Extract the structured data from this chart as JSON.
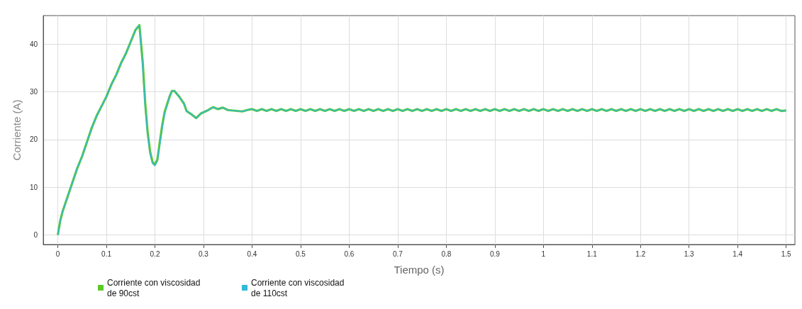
{
  "chart_data": {
    "type": "line",
    "xlabel": "Tiempo (s)",
    "ylabel": "Corriente (A)",
    "xlim": [
      -0.03,
      1.518
    ],
    "ylim": [
      -2,
      46
    ],
    "xticks": [
      0,
      0.1,
      0.2,
      0.3,
      0.4,
      0.5,
      0.6,
      0.7,
      0.8,
      0.9,
      1,
      1.1,
      1.2,
      1.3,
      1.4,
      1.5
    ],
    "yticks": [
      0,
      10,
      20,
      30,
      40
    ],
    "grid": true,
    "legend": "bottom left",
    "marker": "none",
    "line_style": "solid",
    "x": [
      0,
      0.005,
      0.01,
      0.02,
      0.03,
      0.04,
      0.05,
      0.06,
      0.07,
      0.08,
      0.09,
      0.1,
      0.11,
      0.12,
      0.13,
      0.14,
      0.15,
      0.16,
      0.168,
      0.175,
      0.18,
      0.185,
      0.19,
      0.195,
      0.2,
      0.205,
      0.21,
      0.215,
      0.22,
      0.23,
      0.235,
      0.24,
      0.25,
      0.26,
      0.265,
      0.275,
      0.285,
      0.295,
      0.31,
      0.32,
      0.33,
      0.34,
      0.35,
      0.38,
      0.39,
      0.4,
      0.41,
      0.42,
      0.43,
      0.44,
      0.45,
      0.46,
      0.47,
      0.48,
      0.49,
      0.5,
      0.51,
      0.52,
      0.53,
      0.54,
      0.55,
      0.56,
      0.57,
      0.58,
      0.59,
      0.6,
      0.61,
      0.62,
      0.63,
      0.64,
      0.65,
      0.66,
      0.67,
      0.68,
      0.69,
      0.7,
      0.71,
      0.72,
      0.73,
      0.74,
      0.75,
      0.76,
      0.77,
      0.78,
      0.79,
      0.8,
      0.81,
      0.82,
      0.83,
      0.84,
      0.85,
      0.86,
      0.87,
      0.88,
      0.89,
      0.9,
      0.91,
      0.92,
      0.93,
      0.94,
      0.95,
      0.96,
      0.97,
      0.98,
      0.99,
      1,
      1.01,
      1.02,
      1.03,
      1.04,
      1.05,
      1.06,
      1.07,
      1.08,
      1.09,
      1.1,
      1.11,
      1.12,
      1.13,
      1.14,
      1.15,
      1.16,
      1.17,
      1.18,
      1.19,
      1.2,
      1.21,
      1.22,
      1.23,
      1.24,
      1.25,
      1.26,
      1.27,
      1.28,
      1.29,
      1.3,
      1.31,
      1.32,
      1.33,
      1.34,
      1.35,
      1.36,
      1.37,
      1.38,
      1.39,
      1.4,
      1.41,
      1.42,
      1.43,
      1.44,
      1.45,
      1.46,
      1.47,
      1.48,
      1.49,
      1.5
    ],
    "series": [
      {
        "name": "Corriente con viscosidad de 90cst",
        "color": "#5cc928",
        "values": [
          0,
          3,
          5,
          8,
          11,
          14,
          16.5,
          19.5,
          22.5,
          25,
          27,
          29,
          31.5,
          33.5,
          36,
          38,
          40.5,
          43,
          44,
          36,
          27.5,
          21.5,
          17.5,
          15.3,
          14.8,
          15.8,
          19.5,
          23,
          25.8,
          29,
          30.2,
          30.2,
          29,
          27.5,
          26,
          25.3,
          24.5,
          25.5,
          26.2,
          26.8,
          26.4,
          26.7,
          26.2,
          25.9,
          26.2,
          26.4,
          26.0,
          26.4,
          26.0,
          26.4,
          26.0,
          26.4,
          26.0,
          26.4,
          26.0,
          26.4,
          26.0,
          26.4,
          26.0,
          26.4,
          26.0,
          26.4,
          26.0,
          26.4,
          26.0,
          26.4,
          26.0,
          26.4,
          26.0,
          26.4,
          26.0,
          26.4,
          26.0,
          26.4,
          26.0,
          26.4,
          26.0,
          26.4,
          26.0,
          26.4,
          26.0,
          26.4,
          26.0,
          26.4,
          26.0,
          26.4,
          26.0,
          26.4,
          26.0,
          26.4,
          26.0,
          26.4,
          26.0,
          26.4,
          26.0,
          26.4,
          26.0,
          26.4,
          26.0,
          26.4,
          26.0,
          26.4,
          26.0,
          26.4,
          26.0,
          26.4,
          26.0,
          26.4,
          26.0,
          26.4,
          26.0,
          26.4,
          26.0,
          26.4,
          26.0,
          26.4,
          26.0,
          26.4,
          26.0,
          26.4,
          26.0,
          26.4,
          26.0,
          26.4,
          26.0,
          26.4,
          26.0,
          26.4,
          26.0,
          26.4,
          26.0,
          26.4,
          26.0,
          26.4,
          26.0,
          26.4,
          26.0,
          26.4,
          26.0,
          26.4,
          26.0,
          26.4,
          26.0,
          26.4,
          26.0,
          26.4,
          26.0,
          26.4,
          26.0,
          26.4,
          26.0,
          26.4,
          26.0,
          26.4,
          26.0,
          26.1
        ]
      },
      {
        "name": "Corriente con viscosidad de 110cst",
        "color": "#34b8d8",
        "values": [
          0,
          3,
          5,
          8,
          11,
          14,
          16.5,
          19.5,
          22.5,
          25,
          27,
          29,
          31.5,
          33.5,
          36,
          38,
          40.5,
          43,
          44,
          35,
          27,
          21,
          17,
          15,
          14.5,
          15.5,
          19,
          22.5,
          25.5,
          29,
          30.2,
          30.2,
          29,
          27.5,
          26,
          25.3,
          24.5,
          25.5,
          26.2,
          26.8,
          26.4,
          26.7,
          26.2,
          25.9,
          26.2,
          26.4,
          26.0,
          26.4,
          26.0,
          26.4,
          26.0,
          26.4,
          26.0,
          26.4,
          26.0,
          26.4,
          26.0,
          26.4,
          26.0,
          26.4,
          26.0,
          26.4,
          26.0,
          26.4,
          26.0,
          26.4,
          26.0,
          26.4,
          26.0,
          26.4,
          26.0,
          26.4,
          26.0,
          26.4,
          26.0,
          26.4,
          26.0,
          26.4,
          26.0,
          26.4,
          26.0,
          26.4,
          26.0,
          26.4,
          26.0,
          26.4,
          26.0,
          26.4,
          26.0,
          26.4,
          26.0,
          26.4,
          26.0,
          26.4,
          26.0,
          26.4,
          26.0,
          26.4,
          26.0,
          26.4,
          26.0,
          26.4,
          26.0,
          26.4,
          26.0,
          26.4,
          26.0,
          26.4,
          26.0,
          26.4,
          26.0,
          26.4,
          26.0,
          26.4,
          26.0,
          26.4,
          26.0,
          26.4,
          26.0,
          26.4,
          26.0,
          26.4,
          26.0,
          26.4,
          26.0,
          26.4,
          26.0,
          26.4,
          26.0,
          26.4,
          26.0,
          26.4,
          26.0,
          26.4,
          26.0,
          26.4,
          26.0,
          26.4,
          26.0,
          26.4,
          26.0,
          26.4,
          26.0,
          26.4,
          26.0,
          26.4,
          26.0,
          26.4,
          26.0,
          26.4,
          26.0,
          26.4,
          26.0,
          26.4,
          26.0,
          26.1
        ]
      }
    ]
  }
}
